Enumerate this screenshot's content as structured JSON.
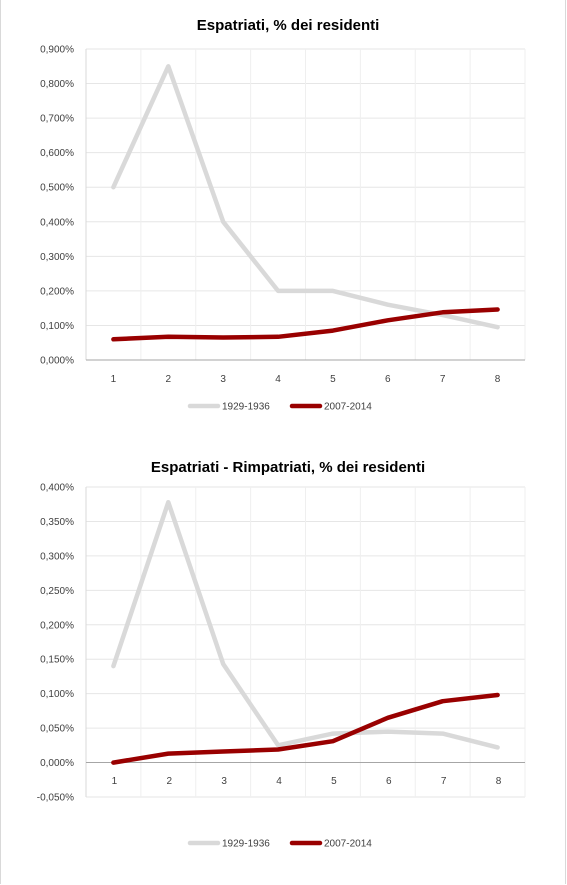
{
  "chart_data": [
    {
      "type": "line",
      "title": "Espatriati, % dei residenti",
      "categories": [
        "1",
        "2",
        "3",
        "4",
        "5",
        "6",
        "7",
        "8"
      ],
      "ylim": [
        0.0,
        0.9
      ],
      "ytick_values": [
        0,
        0.1,
        0.2,
        0.3,
        0.4,
        0.5,
        0.6,
        0.7,
        0.8,
        0.9
      ],
      "ytick_labels": [
        "0,000%",
        "0,100%",
        "0,200%",
        "0,300%",
        "0,400%",
        "0,500%",
        "0,600%",
        "0,700%",
        "0,800%",
        "0,900%"
      ],
      "grid": true,
      "legend_position": "bottom",
      "series": [
        {
          "name": "1929-1936",
          "color": "#d9d9d9",
          "values": [
            0.5,
            0.85,
            0.4,
            0.2,
            0.2,
            0.16,
            0.13,
            0.095
          ]
        },
        {
          "name": "2007-2014",
          "color": "#990000",
          "values": [
            0.06,
            0.067,
            0.065,
            0.067,
            0.085,
            0.115,
            0.138,
            0.146
          ]
        }
      ]
    },
    {
      "type": "line",
      "title": "Espatriati - Rimpatriati, % dei residenti",
      "categories": [
        "1",
        "2",
        "3",
        "4",
        "5",
        "6",
        "7",
        "8"
      ],
      "ylim": [
        -0.05,
        0.4
      ],
      "ytick_values": [
        -0.05,
        0,
        0.05,
        0.1,
        0.15,
        0.2,
        0.25,
        0.3,
        0.35,
        0.4
      ],
      "ytick_labels": [
        "-0,050%",
        "0,000%",
        "0,050%",
        "0,100%",
        "0,150%",
        "0,200%",
        "0,250%",
        "0,300%",
        "0,350%",
        "0,400%"
      ],
      "grid": true,
      "legend_position": "bottom",
      "series": [
        {
          "name": "1929-1936",
          "color": "#d9d9d9",
          "values": [
            0.14,
            0.378,
            0.143,
            0.025,
            0.042,
            0.045,
            0.042,
            0.022
          ]
        },
        {
          "name": "2007-2014",
          "color": "#990000",
          "values": [
            0.0,
            0.013,
            0.016,
            0.019,
            0.031,
            0.065,
            0.089,
            0.098
          ]
        }
      ]
    }
  ]
}
